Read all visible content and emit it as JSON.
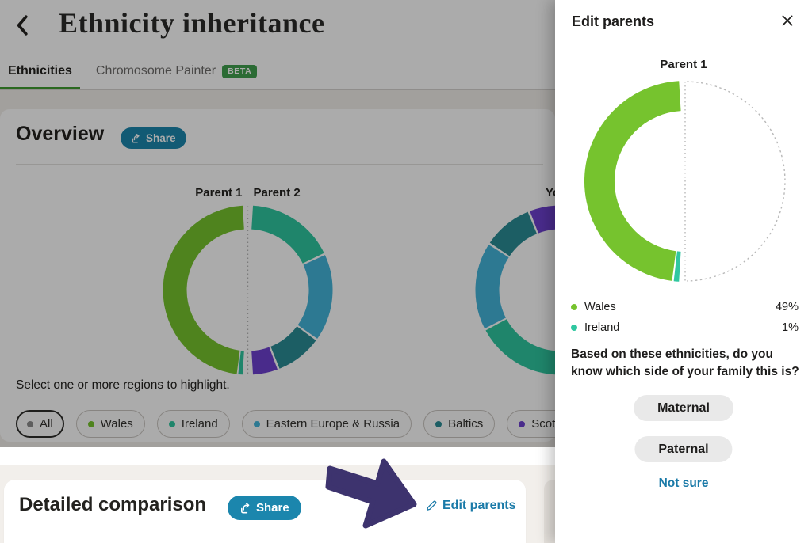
{
  "palette": {
    "wales": "#76c32e",
    "ireland": "#2fc7a0",
    "eastern_europe_russia": "#43b5da",
    "baltics": "#2b8c96",
    "scotland": "#6e40cf",
    "all_dot": "#8d8d8d",
    "tab_underline_green": "#3f9c30",
    "beta_badge_green": "#41a04e",
    "share_button_blue": "#1b86ad",
    "link_blue": "#1a7aa8",
    "arrow_annotation": "#3d336e"
  },
  "header": {
    "title": "Ethnicity inheritance",
    "tabs": [
      {
        "label": "Ethnicities",
        "active": true
      },
      {
        "label": "Chromosome Painter",
        "badge": "BETA",
        "active": false
      }
    ]
  },
  "overview": {
    "heading": "Overview",
    "share_label": "Share",
    "select_hint": "Select one or more regions to highlight.",
    "region_filters": [
      {
        "label": "All",
        "dot": "all_dot",
        "selected": true
      },
      {
        "label": "Wales",
        "dot": "wales",
        "selected": false
      },
      {
        "label": "Ireland",
        "dot": "ireland",
        "selected": false
      },
      {
        "label": "Eastern Europe & Russia",
        "dot": "eastern_europe_russia",
        "selected": false
      },
      {
        "label": "Baltics",
        "dot": "baltics",
        "selected": false
      },
      {
        "label": "Scotland",
        "dot": "scotland",
        "selected": false
      }
    ]
  },
  "detailed": {
    "heading": "Detailed comparison",
    "share_label": "Share",
    "edit_parents_label": "Edit parents"
  },
  "panel": {
    "title": "Edit parents",
    "legend": [
      {
        "label": "Wales",
        "value": "49%",
        "color": "wales"
      },
      {
        "label": "Ireland",
        "value": "1%",
        "color": "ireland"
      }
    ],
    "question": "Based on these ethnicities, do you know which side of your family this is?",
    "maternal_label": "Maternal",
    "paternal_label": "Paternal",
    "not_sure_label": "Not sure"
  },
  "chart_data": [
    {
      "id": "parents-donut",
      "type": "donut",
      "title_left": "Parent 1",
      "title_right": "Parent 2",
      "note": "angles clockwise from 12 o'clock; left half = Parent 1, right half = Parent 2; dotted divider between halves",
      "divider": true,
      "segments": [
        {
          "parent": "Parent 1",
          "region": "Wales",
          "percent": 49,
          "start_deg": 187.5,
          "end_deg": 356.5,
          "color": "wales"
        },
        {
          "parent": "Parent 1",
          "region": "Ireland",
          "percent": 1,
          "start_deg": 183.5,
          "end_deg": 186.5,
          "color": "ireland"
        },
        {
          "parent": "Parent 2",
          "region": "Ireland",
          "percent": 17,
          "start_deg": 3.5,
          "end_deg": 64,
          "color": "ireland"
        },
        {
          "parent": "Parent 2",
          "region": "Eastern Europe & Russia",
          "percent": 17,
          "start_deg": 65.5,
          "end_deg": 125,
          "color": "eastern_europe_russia"
        },
        {
          "parent": "Parent 2",
          "region": "Baltics",
          "percent": 9,
          "start_deg": 126.5,
          "end_deg": 158,
          "color": "baltics"
        },
        {
          "parent": "Parent 2",
          "region": "Scotland",
          "percent": 5,
          "start_deg": 159.5,
          "end_deg": 176.5,
          "color": "scotland"
        }
      ]
    },
    {
      "id": "you-donut",
      "type": "donut",
      "title": "You",
      "note": "only left half visible; right portion hidden behind side panel",
      "segments": [
        {
          "region": "Scotland",
          "percent": 5,
          "start_deg": 339,
          "end_deg": 357,
          "color": "scotland"
        },
        {
          "region": "Baltics",
          "percent": 9,
          "start_deg": 304,
          "end_deg": 337.5,
          "color": "baltics"
        },
        {
          "region": "Eastern Europe & Russia",
          "percent": 17,
          "start_deg": 243,
          "end_deg": 302.5,
          "color": "eastern_europe_russia"
        },
        {
          "region": "Ireland",
          "percent": 16,
          "start_deg": 183.5,
          "end_deg": 241.5,
          "color": "ireland"
        }
      ]
    },
    {
      "id": "panel-donut",
      "type": "donut",
      "title": "Parent 1",
      "placeholder_half": "right",
      "note": "right half is an empty dashed placeholder",
      "segments": [
        {
          "region": "Wales",
          "percent": 49,
          "start_deg": 187.5,
          "end_deg": 356.5,
          "color": "wales"
        },
        {
          "region": "Ireland",
          "percent": 1,
          "start_deg": 183.5,
          "end_deg": 186.5,
          "color": "ireland"
        }
      ]
    }
  ]
}
